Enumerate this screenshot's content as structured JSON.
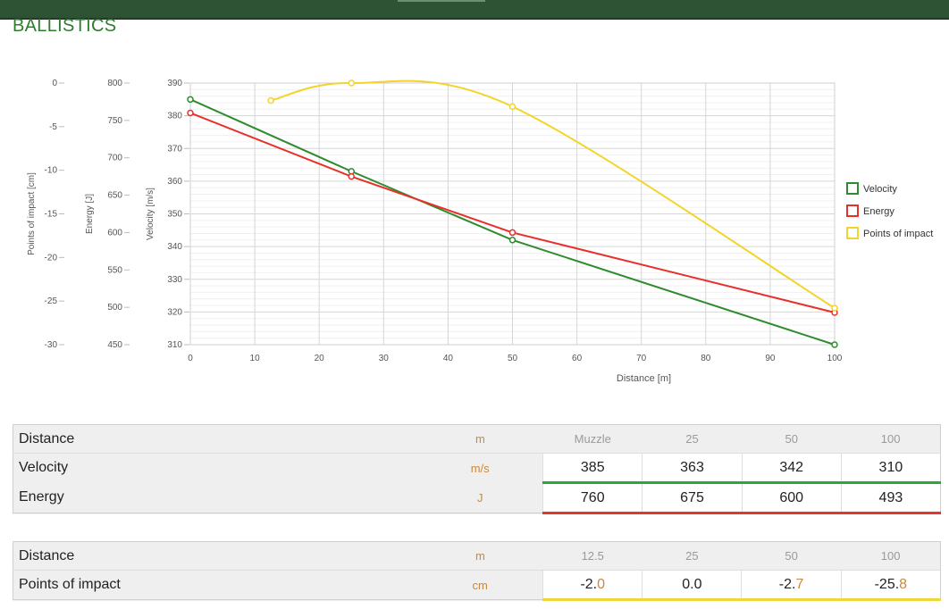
{
  "app": {
    "title": "BALLISTICS"
  },
  "chart_data": {
    "type": "line",
    "x": [
      0,
      25,
      50,
      100
    ],
    "xlabel": "Distance [m]",
    "xlim": [
      0,
      100
    ],
    "xticks": [
      "0",
      "10",
      "20",
      "30",
      "40",
      "50",
      "60",
      "70",
      "80",
      "90",
      "100"
    ],
    "grid": true,
    "legend_position": "right",
    "axes": [
      {
        "label": "Points of impact [cm]",
        "lim": [
          -30,
          0
        ],
        "ticks": [
          "0",
          "-5",
          "-10",
          "-15",
          "-20",
          "-25",
          "-30"
        ]
      },
      {
        "label": "Energy [J]",
        "lim": [
          450,
          800
        ],
        "ticks": [
          "800",
          "750",
          "700",
          "650",
          "600",
          "550",
          "500",
          "450"
        ]
      },
      {
        "label": "Velocity [m/s]",
        "lim": [
          310,
          390
        ],
        "ticks": [
          "390",
          "380",
          "370",
          "360",
          "350",
          "340",
          "330",
          "320",
          "310"
        ]
      }
    ],
    "series": [
      {
        "name": "Velocity",
        "color": "#2e8b2e",
        "axis": 2,
        "x": [
          0,
          25,
          50,
          100
        ],
        "values": [
          385,
          363,
          342,
          310
        ]
      },
      {
        "name": "Energy",
        "color": "#e8302a",
        "axis": 1,
        "x": [
          0,
          25,
          50,
          100
        ],
        "values": [
          760,
          675,
          600,
          493
        ]
      },
      {
        "name": "Points of impact",
        "color": "#f2d42a",
        "axis": 0,
        "x": [
          12.5,
          25,
          50,
          100
        ],
        "values": [
          -2.0,
          0.0,
          -2.7,
          -25.8
        ]
      }
    ]
  },
  "table1": {
    "distance_label": "Distance",
    "distance_unit": "m",
    "distances": [
      "Muzzle",
      "25",
      "50",
      "100"
    ],
    "velocity_label": "Velocity",
    "velocity_unit": "m/s",
    "velocities": [
      "385",
      "363",
      "342",
      "310"
    ],
    "energy_label": "Energy",
    "energy_unit": "J",
    "energies": [
      "760",
      "675",
      "600",
      "493"
    ]
  },
  "table2": {
    "distance_label": "Distance",
    "distance_unit": "m",
    "distances": [
      "12.5",
      "25",
      "50",
      "100"
    ],
    "poi_label": "Points of impact",
    "poi_unit": "cm",
    "poi": [
      {
        "int": "-2.",
        "dec": "0"
      },
      {
        "int": "0.",
        "dec": "0"
      },
      {
        "int": "-2.",
        "dec": "7"
      },
      {
        "int": "-25.",
        "dec": "8"
      }
    ]
  }
}
